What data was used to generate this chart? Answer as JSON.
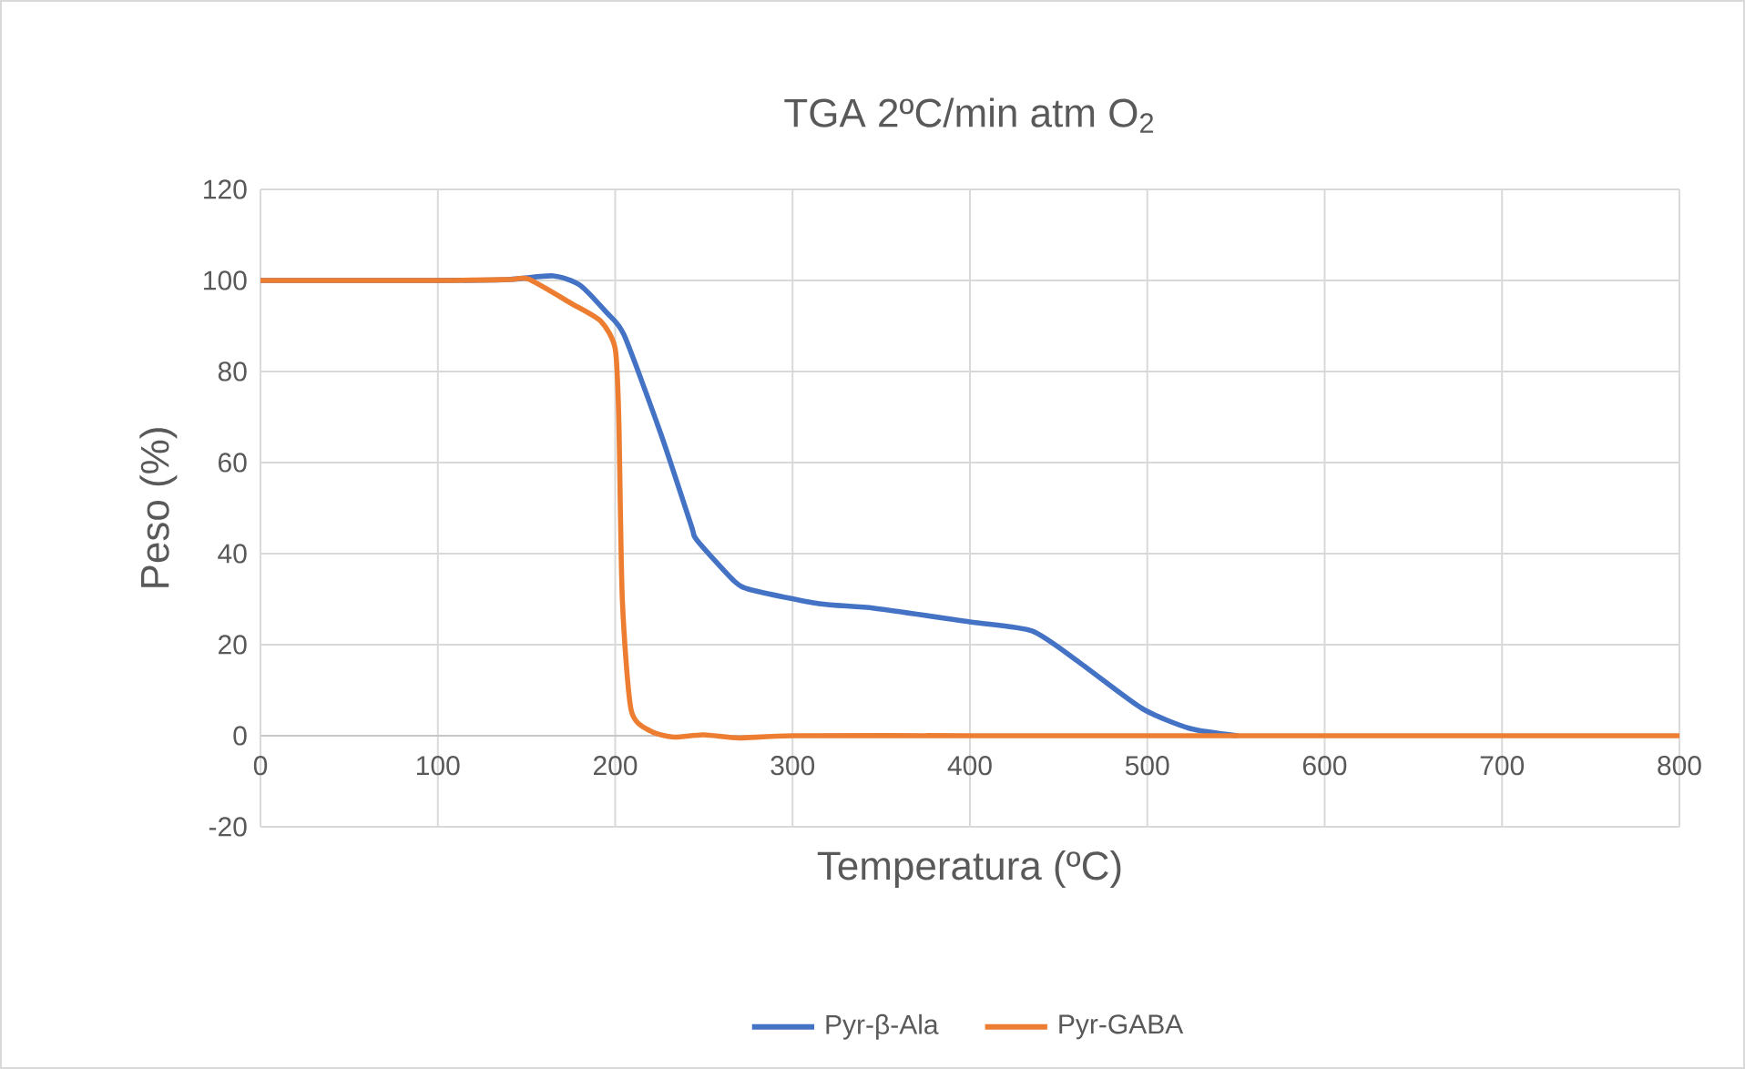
{
  "chart_data": {
    "type": "line",
    "title": "TGA 2ºC/min atm O$_{2}$",
    "xlabel": "Temperatura (ºC)",
    "ylabel": "Peso (%)",
    "xlim": [
      0,
      800
    ],
    "ylim": [
      -20,
      120
    ],
    "xticks": [
      0,
      100,
      200,
      300,
      400,
      500,
      600,
      700,
      800
    ],
    "yticks": [
      -20,
      0,
      20,
      40,
      60,
      80,
      100,
      120
    ],
    "grid": true,
    "legend": "bottom",
    "series": [
      {
        "name": "Pyr-β-Ala",
        "color": "#4472c4",
        "x": [
          0,
          100,
          140,
          165,
          180,
          195,
          205,
          226,
          243,
          246,
          267,
          277,
          315,
          346,
          400,
          435,
          462,
          497,
          524,
          551
        ],
        "values": [
          100,
          100,
          100.2,
          101,
          99,
          93,
          88,
          66,
          46,
          43,
          34,
          32,
          29,
          28,
          25,
          23,
          16,
          6,
          1.6,
          0
        ]
      },
      {
        "name": "Pyr-GABA",
        "color": "#ed7d31",
        "x": [
          0,
          100,
          140,
          151,
          175,
          192,
          200,
          202,
          204,
          209,
          220,
          233,
          250,
          270,
          300,
          400,
          500,
          600,
          700,
          800
        ],
        "values": [
          100,
          100,
          100.2,
          100.3,
          95,
          91,
          85,
          70,
          30,
          5.6,
          1,
          -0.3,
          0.2,
          -0.5,
          0,
          0,
          0,
          0,
          0,
          0
        ]
      }
    ]
  }
}
